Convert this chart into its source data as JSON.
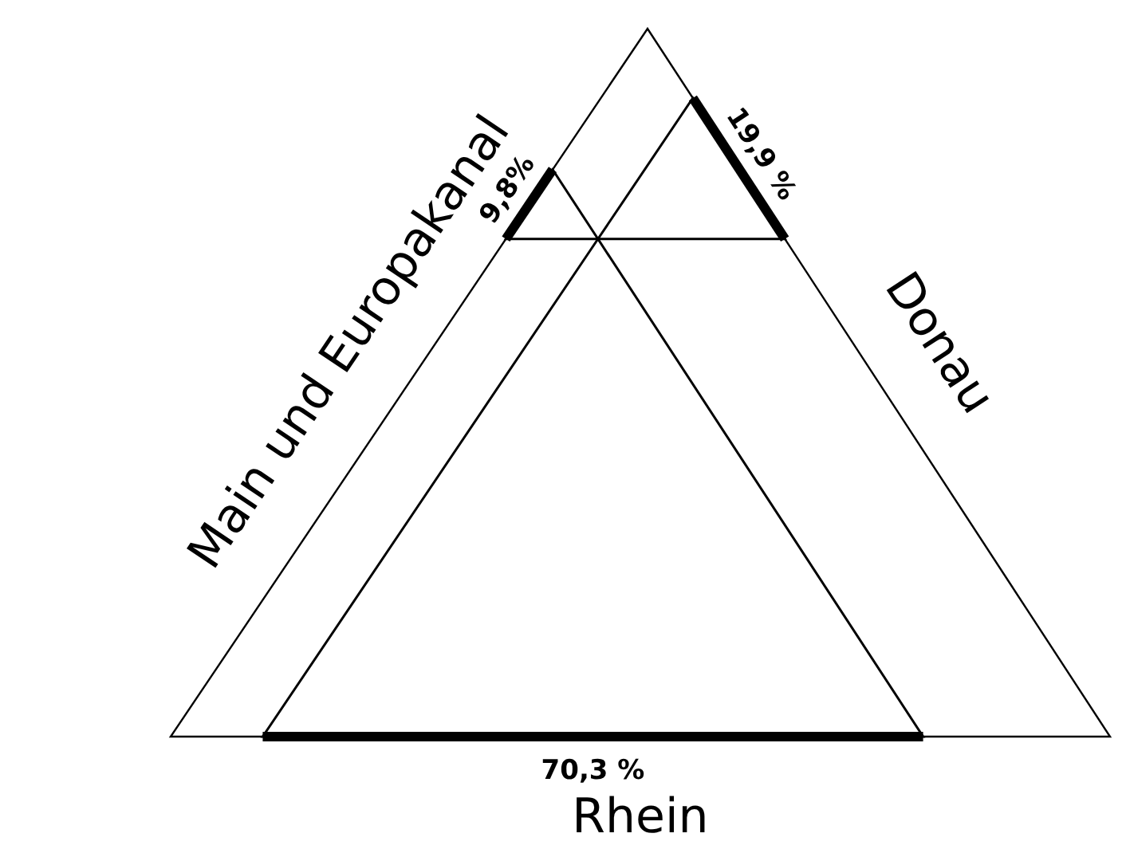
{
  "chart_data": {
    "type": "other",
    "categories": [
      "Rhein",
      "Donau",
      "Main und Europakanal"
    ],
    "values": [
      70.3,
      19.9,
      9.8
    ],
    "value_labels": [
      "70,3 %",
      "19,9 %",
      "9,8%"
    ]
  }
}
